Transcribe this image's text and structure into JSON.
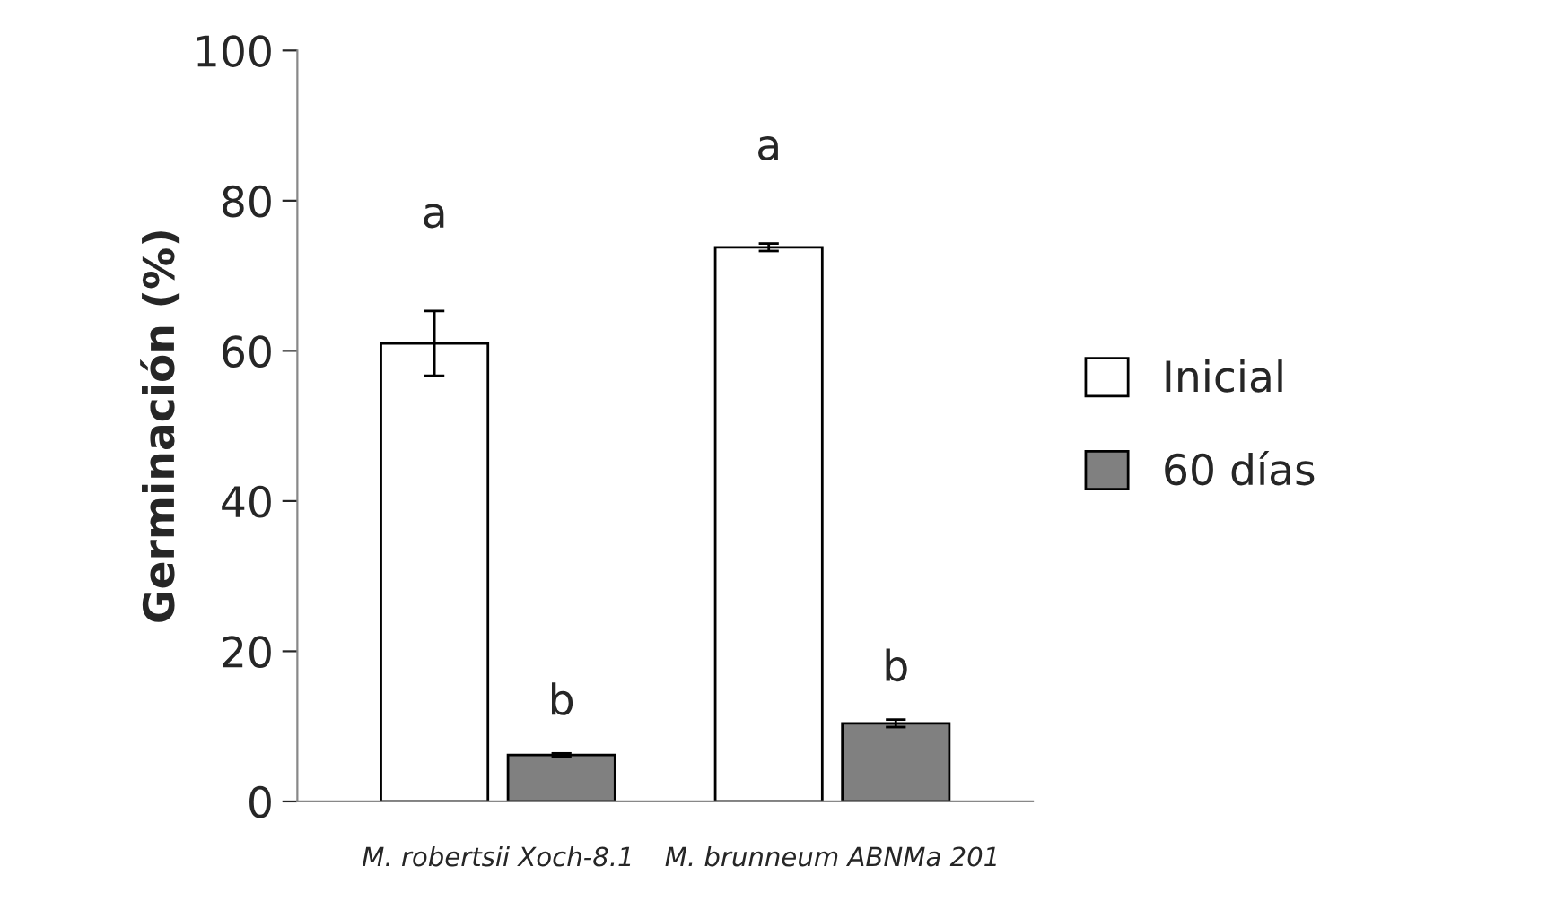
{
  "chart_data": {
    "type": "bar",
    "ylabel": "Germinación (%)",
    "categories": [
      "M. robertsii Xoch-8.1",
      "M. brunneum ABNMa 201"
    ],
    "series": [
      {
        "name": "Inicial",
        "color": "#ffffff",
        "values": [
          61,
          73.8
        ],
        "errors": [
          4.3,
          0.5
        ]
      },
      {
        "name": "60 días",
        "color": "#808080",
        "values": [
          6.2,
          10.4
        ],
        "errors": [
          0.2,
          0.5
        ]
      }
    ],
    "ylim": [
      0,
      100
    ],
    "yticks": [
      0,
      20,
      40,
      60,
      80,
      100
    ],
    "grid": false,
    "legend": "right",
    "annotations": [
      "a",
      "a",
      "b",
      "b"
    ]
  }
}
